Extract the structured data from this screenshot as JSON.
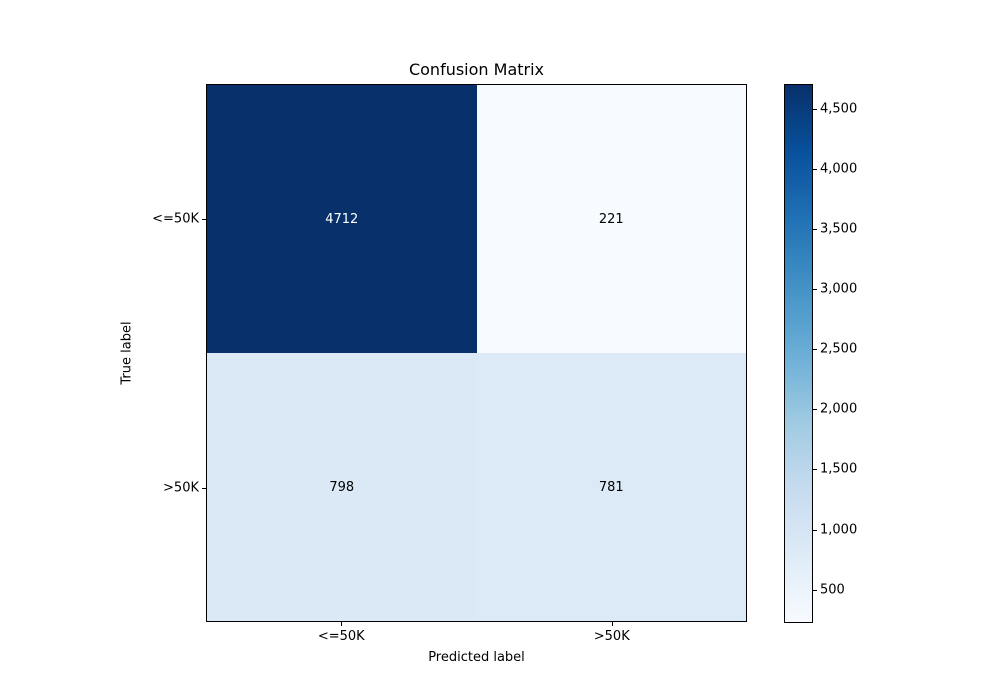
{
  "figure": {
    "background": "#ffffff"
  },
  "chart_data": {
    "type": "heatmap",
    "title": "Confusion Matrix",
    "xlabel": "Predicted label",
    "ylabel": "True label",
    "x_tick_labels": [
      "<=50K",
      ">50K"
    ],
    "y_tick_labels": [
      "<=50K",
      ">50K"
    ],
    "matrix": [
      [
        4712,
        221
      ],
      [
        798,
        781
      ]
    ],
    "cell_colors": [
      [
        "#08306b",
        "#f7fbff"
      ],
      [
        "#dbe9f6",
        "#dce9f6"
      ]
    ],
    "cell_text_colors": [
      [
        "#ffffff",
        "#000000"
      ],
      [
        "#000000",
        "#000000"
      ]
    ],
    "colormap": "Blues",
    "vmin": 221,
    "vmax": 4712,
    "colorbar_tick_values": [
      500,
      1000,
      1500,
      2000,
      2500,
      3000,
      3500,
      4000,
      4500
    ],
    "colorbar_tick_labels": [
      "500",
      "1,000",
      "1,500",
      "2,000",
      "2,500",
      "3,000",
      "3,500",
      "4,000",
      "4,500"
    ],
    "colorbar_gradient": [
      "#f7fbff",
      "#deebf7",
      "#c6dbef",
      "#9ecae1",
      "#6baed6",
      "#4292c6",
      "#2171b5",
      "#08519c",
      "#08306b"
    ],
    "legend_position": "right-colorbar",
    "grid": false
  }
}
